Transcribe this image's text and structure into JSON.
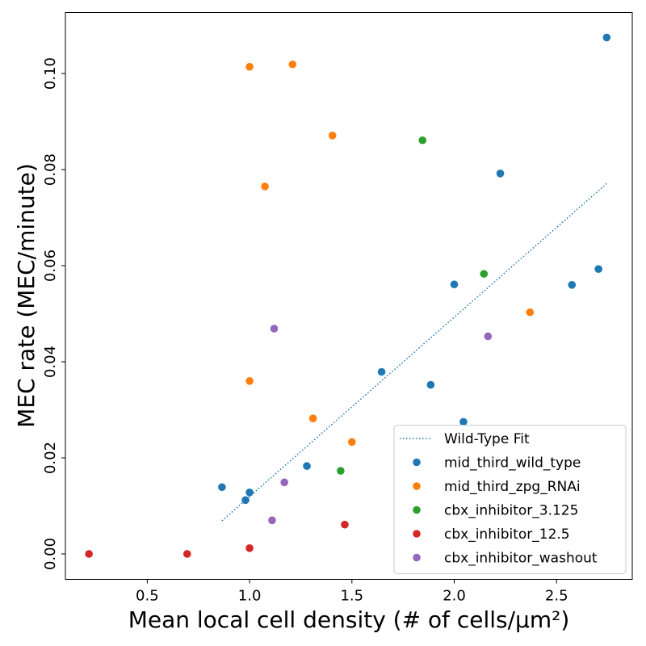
{
  "chart_data": {
    "type": "scatter",
    "title": "",
    "xlabel": "Mean local cell density (# of cells/μm²)",
    "ylabel": "MEC rate (MEC/minute)",
    "xlim": [
      0.1,
      2.87
    ],
    "ylim": [
      -0.0053,
      0.1127
    ],
    "xticks": [
      0.5,
      1.0,
      1.5,
      2.0,
      2.5
    ],
    "xtick_labels": [
      "0.5",
      "1.0",
      "1.5",
      "2.0",
      "2.5"
    ],
    "yticks": [
      0.0,
      0.02,
      0.04,
      0.06,
      0.08,
      0.1
    ],
    "ytick_labels": [
      "0.00",
      "0.02",
      "0.04",
      "0.06",
      "0.08",
      "0.10"
    ],
    "grid": false,
    "legend_position": "lower-right",
    "fit": {
      "name": "Wild-Type Fit",
      "style": "dotted",
      "color": "#1f77b4",
      "x": [
        0.865,
        2.745
      ],
      "y": [
        0.0069,
        0.0771
      ]
    },
    "series": [
      {
        "name": "mid_third_wild_type",
        "color": "#1f77b4",
        "points": [
          [
            0.865,
            0.0139
          ],
          [
            0.98,
            0.0112
          ],
          [
            1.0,
            0.0128
          ],
          [
            1.28,
            0.0183
          ],
          [
            1.645,
            0.0379
          ],
          [
            1.885,
            0.0352
          ],
          [
            2.045,
            0.0275
          ],
          [
            2.0,
            0.0561
          ],
          [
            2.225,
            0.0792
          ],
          [
            2.575,
            0.056
          ],
          [
            2.705,
            0.0593
          ],
          [
            2.745,
            0.1075
          ]
        ]
      },
      {
        "name": "mid_third_zpg_RNAi",
        "color": "#ff7f0e",
        "points": [
          [
            1.0,
            0.1014
          ],
          [
            1.21,
            0.1019
          ],
          [
            1.405,
            0.0871
          ],
          [
            1.075,
            0.0765
          ],
          [
            1.0,
            0.036
          ],
          [
            1.31,
            0.0282
          ],
          [
            1.5,
            0.0233
          ],
          [
            2.37,
            0.0503
          ]
        ]
      },
      {
        "name": "cbx_inhibitor_3.125",
        "color": "#2ca02c",
        "points": [
          [
            1.845,
            0.0861
          ],
          [
            2.145,
            0.0583
          ],
          [
            1.445,
            0.0173
          ]
        ]
      },
      {
        "name": "cbx_inhibitor_12.5",
        "color": "#d62728",
        "points": [
          [
            0.215,
            0.0
          ],
          [
            0.695,
            0.0
          ],
          [
            1.0,
            0.0012
          ],
          [
            1.465,
            0.0061
          ]
        ]
      },
      {
        "name": "cbx_inhibitor_washout",
        "color": "#9467bd",
        "points": [
          [
            1.12,
            0.0469
          ],
          [
            2.165,
            0.0453
          ],
          [
            1.17,
            0.0149
          ],
          [
            1.11,
            0.007
          ]
        ]
      }
    ]
  }
}
